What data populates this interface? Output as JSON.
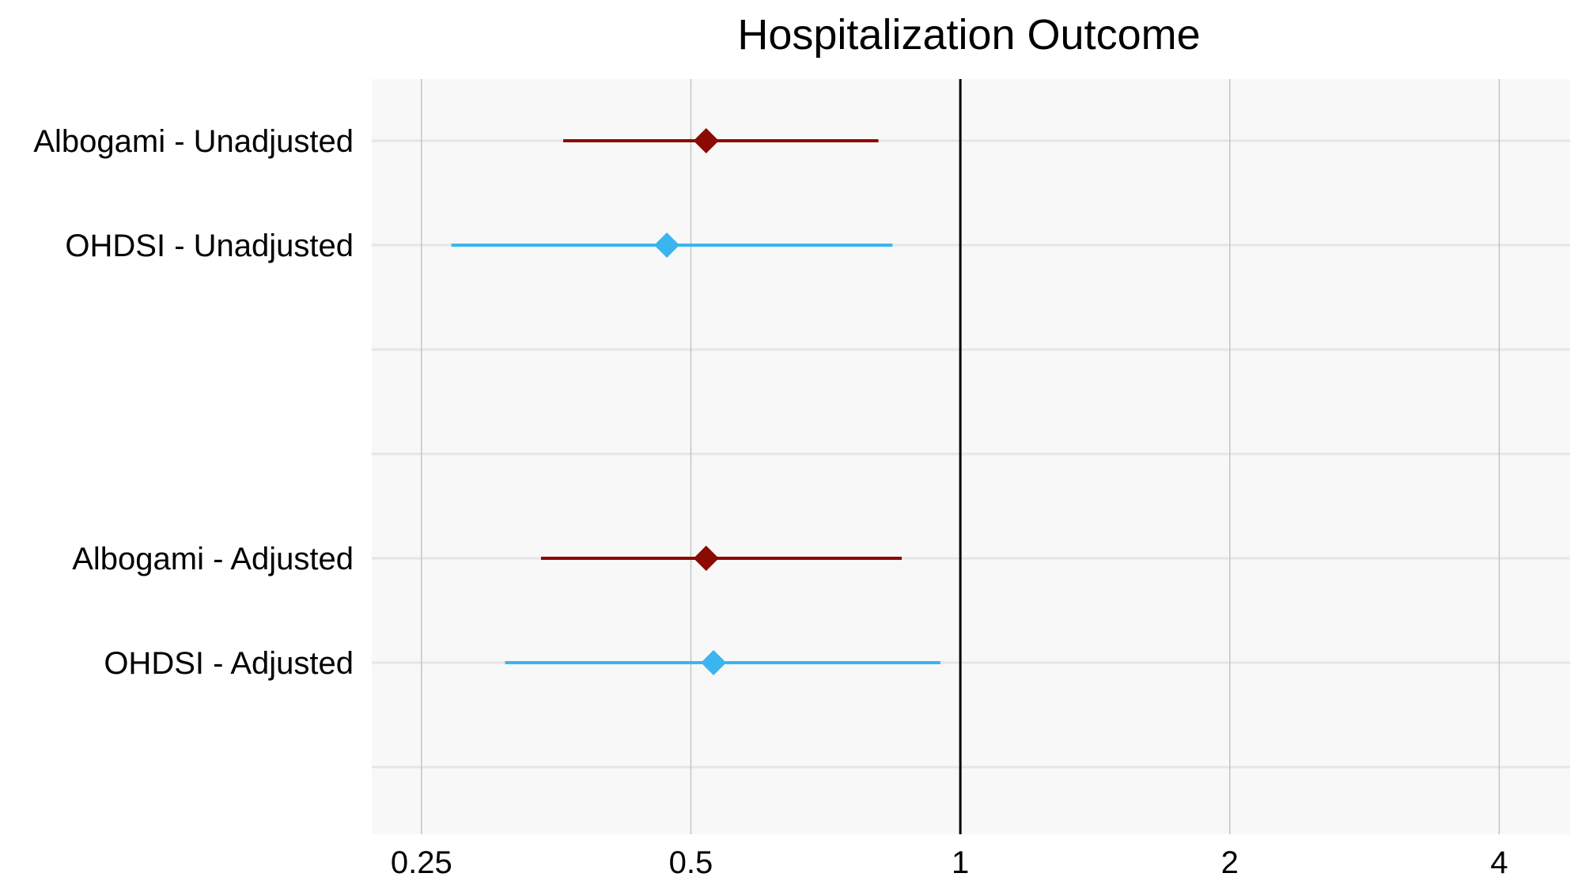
{
  "chart_data": {
    "type": "forest",
    "title": "Hospitalization Outcome",
    "xlabel": "",
    "ylabel": "",
    "x_scale": "log2",
    "xlim": [
      0.22,
      4.8
    ],
    "x_ticks": [
      0.25,
      0.5,
      1,
      2,
      4
    ],
    "x_tick_labels": [
      "0.25",
      "0.5",
      "1",
      "2",
      "4"
    ],
    "reference_line": 1,
    "grid": true,
    "rows": [
      {
        "label": "Albogami - Unadjusted",
        "estimate": 0.52,
        "lower": 0.36,
        "upper": 0.81,
        "color": "#8B0A03"
      },
      {
        "label": "OHDSI - Unadjusted",
        "estimate": 0.47,
        "lower": 0.27,
        "upper": 0.84,
        "color": "#3BB5EE"
      },
      {
        "label": "Albogami - Adjusted",
        "estimate": 0.52,
        "lower": 0.34,
        "upper": 0.86,
        "color": "#8B0A03"
      },
      {
        "label": "OHDSI - Adjusted",
        "estimate": 0.53,
        "lower": 0.31,
        "upper": 0.95,
        "color": "#3BB5EE"
      }
    ]
  }
}
